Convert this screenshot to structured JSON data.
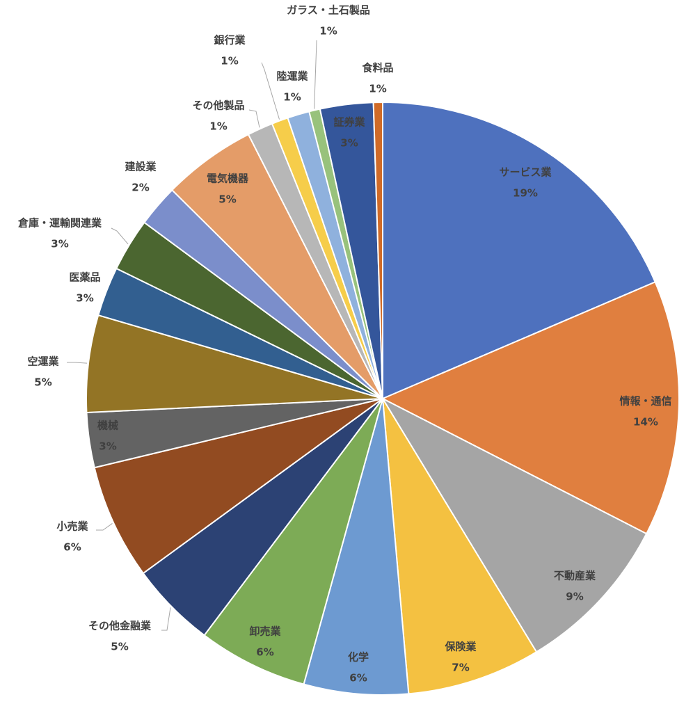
{
  "chart_data": {
    "type": "pie",
    "categories": [
      "サービス業",
      "情報・通信",
      "不動産業",
      "保険業",
      "化学",
      "卸売業",
      "その他金融業",
      "小売業",
      "機械",
      "空運業",
      "医薬品",
      "倉庫・運輸関連業",
      "建設業",
      "電気機器",
      "その他製品",
      "銀行業",
      "陸運業",
      "ガラス・土石製品",
      "証券業",
      "食料品"
    ],
    "values": [
      18.6,
      14.0,
      8.8,
      7.3,
      5.7,
      6.0,
      4.7,
      6.3,
      3.0,
      5.3,
      2.7,
      2.9,
      2.3,
      5.1,
      1.4,
      0.9,
      1.2,
      0.6,
      2.9,
      0.5
    ],
    "value_labels": [
      "19%",
      "14%",
      "9%",
      "7%",
      "6%",
      "6%",
      "5%",
      "6%",
      "3%",
      "5%",
      "3%",
      "3%",
      "2%",
      "5%",
      "1%",
      "1%",
      "1%",
      "1%",
      "3%",
      "1%"
    ],
    "colors": [
      "#4e71be",
      "#e07f3f",
      "#a5a5a5",
      "#f4c141",
      "#6d9ad1",
      "#7dab56",
      "#2c4274",
      "#924b21",
      "#636363",
      "#937425",
      "#325f90",
      "#4b6630",
      "#7b8ecb",
      "#e49c68",
      "#b7b7b7",
      "#f6cd4a",
      "#8fb1dd",
      "#98c27c",
      "#34569b",
      "#d06b28"
    ]
  }
}
